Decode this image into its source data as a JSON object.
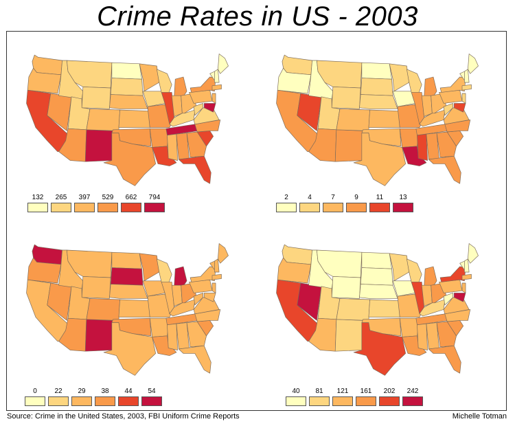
{
  "page": {
    "title": "Crime Rates in US - 2003",
    "source": "Source: Crime in the United States, 2003, FBI Uniform Crime Reports",
    "author": "Michelle Totman"
  },
  "colors": {
    "class1": "#ffffbf",
    "class2": "#fdd680",
    "class3": "#fdb860",
    "class4": "#f99a4a",
    "class5": "#e8462b",
    "class6": "#c4123e",
    "border": "#7a6a5a"
  },
  "maps": [
    {
      "legend": [
        "132",
        "265",
        "397",
        "529",
        "662",
        "794"
      ],
      "states": {
        "WA": 3,
        "OR": 3,
        "CA": 5,
        "NV": 4,
        "ID": 2,
        "MT": 2,
        "WY": 2,
        "UT": 2,
        "AZ": 4,
        "NM": 6,
        "CO": 3,
        "ND": 1,
        "SD": 2,
        "NE": 3,
        "KS": 3,
        "OK": 4,
        "TX": 4,
        "MN": 3,
        "IA": 2,
        "MO": 4,
        "AR": 4,
        "LA": 5,
        "WI": 2,
        "IL": 5,
        "MI": 4,
        "IN": 3,
        "OH": 3,
        "KY": 2,
        "TN": 6,
        "MS": 3,
        "AL": 4,
        "GA": 4,
        "FL": 5,
        "SC": 5,
        "NC": 4,
        "VA": 2,
        "WV": 2,
        "PA": 3,
        "NY": 4,
        "VT": 1,
        "NH": 1,
        "ME": 1,
        "MA": 3,
        "NJ": 3,
        "MD": 6
      }
    },
    {
      "legend": [
        "2",
        "4",
        "7",
        "9",
        "11",
        "13"
      ],
      "states": {
        "WA": 2,
        "OR": 1,
        "CA": 4,
        "NV": 5,
        "ID": 1,
        "MT": 2,
        "WY": 2,
        "UT": 2,
        "AZ": 4,
        "NM": 4,
        "CO": 3,
        "ND": 1,
        "SD": 2,
        "NE": 2,
        "KS": 3,
        "OK": 3,
        "TX": 3,
        "MN": 2,
        "IA": 1,
        "MO": 4,
        "AR": 4,
        "LA": 6,
        "WI": 2,
        "IL": 4,
        "MI": 4,
        "IN": 3,
        "OH": 3,
        "KY": 3,
        "TN": 4,
        "MS": 5,
        "AL": 4,
        "GA": 4,
        "FL": 4,
        "SC": 4,
        "NC": 4,
        "VA": 3,
        "WV": 2,
        "PA": 3,
        "NY": 3,
        "VT": 1,
        "NH": 1,
        "ME": 1,
        "MA": 2,
        "NJ": 2,
        "MD": 5
      }
    },
    {
      "legend": [
        "0",
        "22",
        "29",
        "38",
        "44",
        "54"
      ],
      "states": {
        "WA": 6,
        "OR": 4,
        "CA": 3,
        "NV": 4,
        "ID": 3,
        "MT": 3,
        "WY": 3,
        "UT": 3,
        "AZ": 4,
        "NM": 6,
        "CO": 4,
        "ND": 3,
        "SD": 6,
        "NE": 3,
        "KS": 3,
        "OK": 4,
        "TX": 3,
        "MN": 4,
        "IA": 3,
        "MO": 3,
        "AR": 3,
        "LA": 4,
        "WI": 2,
        "IL": 3,
        "MI": 6,
        "IN": 3,
        "OH": 4,
        "KY": 3,
        "TN": 4,
        "MS": 3,
        "AL": 3,
        "GA": 3,
        "FL": 3,
        "SC": 4,
        "NC": 3,
        "VA": 3,
        "WV": 3,
        "PA": 3,
        "NY": 3,
        "VT": 3,
        "NH": 3,
        "ME": 3,
        "MA": 3,
        "NJ": 3,
        "MD": 3
      }
    },
    {
      "legend": [
        "40",
        "81",
        "121",
        "161",
        "202",
        "242"
      ],
      "states": {
        "WA": 2,
        "OR": 3,
        "CA": 5,
        "NV": 6,
        "ID": 1,
        "MT": 1,
        "WY": 1,
        "UT": 2,
        "AZ": 3,
        "NM": 2,
        "CO": 2,
        "ND": 1,
        "SD": 1,
        "NE": 1,
        "KS": 2,
        "OK": 3,
        "TX": 5,
        "MN": 2,
        "IA": 1,
        "MO": 3,
        "AR": 3,
        "LA": 4,
        "WI": 2,
        "IL": 5,
        "MI": 4,
        "IN": 3,
        "OH": 4,
        "KY": 2,
        "TN": 4,
        "MS": 3,
        "AL": 3,
        "GA": 4,
        "FL": 4,
        "SC": 4,
        "NC": 3,
        "VA": 3,
        "WV": 1,
        "PA": 3,
        "NY": 5,
        "VT": 1,
        "NH": 1,
        "ME": 1,
        "MA": 3,
        "NJ": 3,
        "MD": 6
      }
    }
  ]
}
